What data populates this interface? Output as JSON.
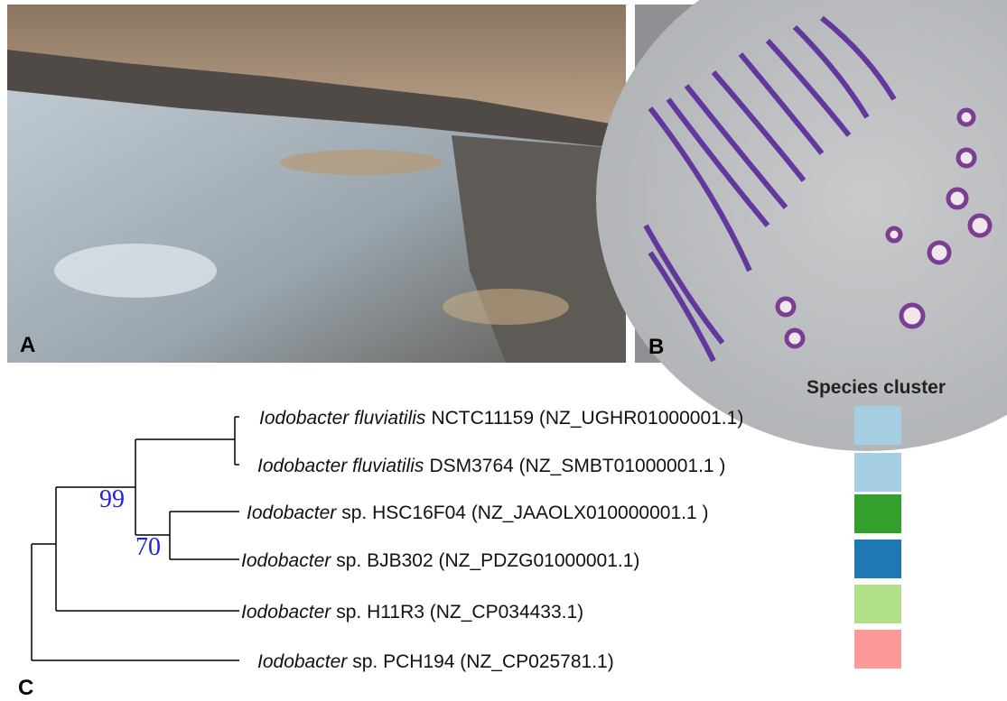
{
  "panels": {
    "a": {
      "label": "A"
    },
    "b": {
      "label": "B"
    },
    "c": {
      "label": "C"
    }
  },
  "species_cluster_title": "Species cluster",
  "tree": {
    "bootstrap": [
      99,
      70
    ],
    "leaves": [
      {
        "genus": "Iodobacter fluviatilis",
        "rest": "NCTC11159 (NZ_UGHR01000001.1)",
        "cluster_color": "#a6cee3"
      },
      {
        "genus": "Iodobacter fluviatilis",
        "rest": "DSM3764 (NZ_SMBT01000001.1 )",
        "cluster_color": "#a6cee3"
      },
      {
        "genus": "Iodobacter",
        "rest": "sp. HSC16F04 (NZ_JAAOLX010000001.1 )",
        "cluster_color": "#33a02c"
      },
      {
        "genus": "Iodobacter",
        "rest": "sp. BJB302 (NZ_PDZG01000001.1)",
        "cluster_color": "#1f78b4"
      },
      {
        "genus": "Iodobacter",
        "rest": "sp. H11R3 (NZ_CP034433.1)",
        "cluster_color": "#b2df8a"
      },
      {
        "genus": "Iodobacter",
        "rest": "sp. PCH194 (NZ_CP025781.1)",
        "cluster_color": "#fb9a99"
      }
    ]
  }
}
